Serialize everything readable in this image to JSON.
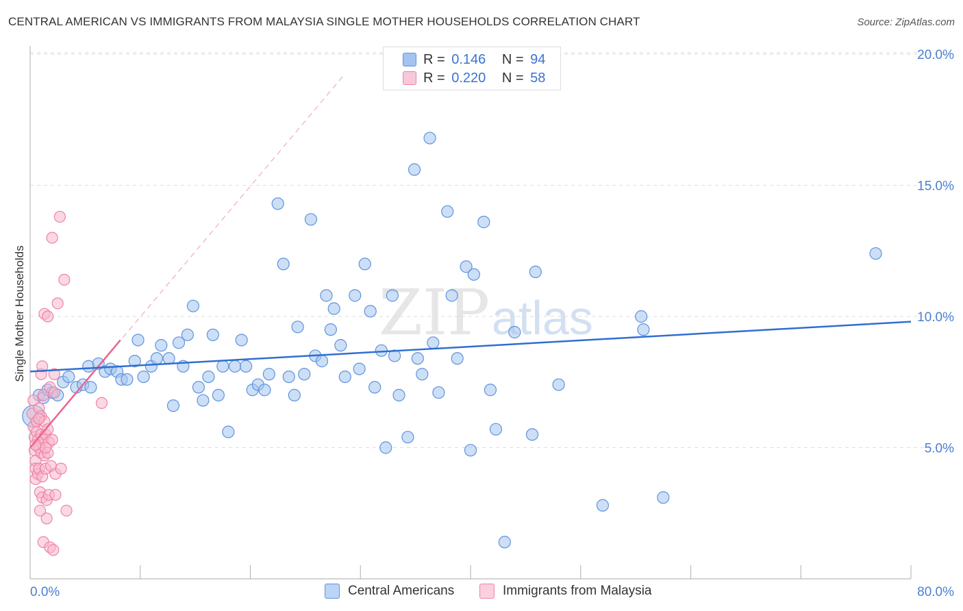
{
  "title": "CENTRAL AMERICAN VS IMMIGRANTS FROM MALAYSIA SINGLE MOTHER HOUSEHOLDS CORRELATION CHART",
  "source": "Source: ZipAtlas.com",
  "watermark": {
    "zip": "ZIP",
    "atlas": "atlas"
  },
  "colors": {
    "blue": "#5e93db",
    "blue_fill": "#a3c4f0",
    "pink": "#ee82a6",
    "pink_fill": "#f8b8cc",
    "blue_line": "#2f6fcf",
    "pink_line": "#e8648f",
    "axis_text": "#4a7fd0"
  },
  "legend": {
    "r_label": "R =",
    "n_label": "N =",
    "items": [
      {
        "r": "0.146",
        "n": "94"
      },
      {
        "r": "0.220",
        "n": "58"
      }
    ]
  },
  "bottom_legend": [
    "Central Americans",
    "Immigrants from Malaysia"
  ],
  "chart_data": {
    "type": "scatter",
    "title": "CENTRAL AMERICAN VS IMMIGRANTS FROM MALAYSIA SINGLE MOTHER HOUSEHOLDS CORRELATION CHART",
    "xlabel": "",
    "ylabel": "Single Mother Households",
    "xlim": [
      0,
      80
    ],
    "ylim": [
      0,
      20.5
    ],
    "x_tick_labels": [
      "0.0%",
      "80.0%"
    ],
    "y_ticks": [
      5,
      10,
      15,
      20
    ],
    "y_tick_labels": [
      "5.0%",
      "10.0%",
      "15.0%",
      "20.0%"
    ],
    "series": [
      {
        "name": "Central Americans",
        "r": 0.146,
        "n": 94,
        "trend": {
          "x": [
            0,
            80
          ],
          "y": [
            7.9,
            9.8
          ]
        },
        "points": [
          [
            0.3,
            6.2
          ],
          [
            0.8,
            7.0
          ],
          [
            1.2,
            6.9
          ],
          [
            1.6,
            7.2
          ],
          [
            2.0,
            7.1
          ],
          [
            2.5,
            7.0
          ],
          [
            3.0,
            7.5
          ],
          [
            3.5,
            7.7
          ],
          [
            4.2,
            7.3
          ],
          [
            4.8,
            7.4
          ],
          [
            5.5,
            7.3
          ],
          [
            5.3,
            8.1
          ],
          [
            6.2,
            8.2
          ],
          [
            6.8,
            7.9
          ],
          [
            7.3,
            8.0
          ],
          [
            7.9,
            7.9
          ],
          [
            8.3,
            7.6
          ],
          [
            8.8,
            7.6
          ],
          [
            9.5,
            8.3
          ],
          [
            9.8,
            9.1
          ],
          [
            10.3,
            7.7
          ],
          [
            11.0,
            8.1
          ],
          [
            11.5,
            8.4
          ],
          [
            11.9,
            8.9
          ],
          [
            12.6,
            8.4
          ],
          [
            13.0,
            6.6
          ],
          [
            13.5,
            9.0
          ],
          [
            13.9,
            8.1
          ],
          [
            14.3,
            9.3
          ],
          [
            14.8,
            10.4
          ],
          [
            15.3,
            7.3
          ],
          [
            15.7,
            6.8
          ],
          [
            16.2,
            7.7
          ],
          [
            16.6,
            9.3
          ],
          [
            17.1,
            7.0
          ],
          [
            17.5,
            8.1
          ],
          [
            18.0,
            5.6
          ],
          [
            18.6,
            8.1
          ],
          [
            19.2,
            9.1
          ],
          [
            19.6,
            8.1
          ],
          [
            20.2,
            7.2
          ],
          [
            20.7,
            7.4
          ],
          [
            21.3,
            7.2
          ],
          [
            21.7,
            7.8
          ],
          [
            22.5,
            14.3
          ],
          [
            23.0,
            12.0
          ],
          [
            23.5,
            7.7
          ],
          [
            24.0,
            7.0
          ],
          [
            24.3,
            9.6
          ],
          [
            24.9,
            7.8
          ],
          [
            25.5,
            13.7
          ],
          [
            25.9,
            8.5
          ],
          [
            26.5,
            8.3
          ],
          [
            26.9,
            10.8
          ],
          [
            27.3,
            9.5
          ],
          [
            27.6,
            10.3
          ],
          [
            28.2,
            8.9
          ],
          [
            28.6,
            7.7
          ],
          [
            29.5,
            10.8
          ],
          [
            29.9,
            8.0
          ],
          [
            30.4,
            12.0
          ],
          [
            30.9,
            10.2
          ],
          [
            31.3,
            7.3
          ],
          [
            31.9,
            8.7
          ],
          [
            32.3,
            5.0
          ],
          [
            32.9,
            10.8
          ],
          [
            33.1,
            8.5
          ],
          [
            33.5,
            7.0
          ],
          [
            34.3,
            5.4
          ],
          [
            34.9,
            15.6
          ],
          [
            35.2,
            8.4
          ],
          [
            35.6,
            7.8
          ],
          [
            36.3,
            16.8
          ],
          [
            36.6,
            9.0
          ],
          [
            37.1,
            7.1
          ],
          [
            37.9,
            14.0
          ],
          [
            38.3,
            10.8
          ],
          [
            38.8,
            8.4
          ],
          [
            39.6,
            11.9
          ],
          [
            40.0,
            4.9
          ],
          [
            40.3,
            11.6
          ],
          [
            41.2,
            13.6
          ],
          [
            41.8,
            7.2
          ],
          [
            42.3,
            5.7
          ],
          [
            43.1,
            1.4
          ],
          [
            44.0,
            9.4
          ],
          [
            45.6,
            5.5
          ],
          [
            45.9,
            11.7
          ],
          [
            48.0,
            7.4
          ],
          [
            52.0,
            2.8
          ],
          [
            55.5,
            10.0
          ],
          [
            55.7,
            9.5
          ],
          [
            57.5,
            3.1
          ],
          [
            76.8,
            12.4
          ]
        ]
      },
      {
        "name": "Immigrants from Malaysia",
        "r": 0.22,
        "n": 58,
        "trend": {
          "x": [
            0,
            8.2
          ],
          "y": [
            5.0,
            9.1
          ]
        },
        "trend_extended": {
          "x": [
            0,
            28.5
          ],
          "y": [
            5.0,
            19.2
          ]
        },
        "points": [
          [
            0.2,
            6.3
          ],
          [
            0.3,
            6.8
          ],
          [
            0.3,
            5.8
          ],
          [
            0.4,
            5.4
          ],
          [
            0.4,
            4.9
          ],
          [
            0.5,
            4.5
          ],
          [
            0.5,
            4.2
          ],
          [
            0.5,
            3.8
          ],
          [
            0.6,
            5.6
          ],
          [
            0.6,
            6.0
          ],
          [
            0.7,
            5.3
          ],
          [
            0.7,
            4.0
          ],
          [
            0.8,
            6.5
          ],
          [
            0.8,
            5.0
          ],
          [
            0.8,
            4.2
          ],
          [
            0.9,
            3.3
          ],
          [
            0.9,
            2.6
          ],
          [
            1.0,
            7.8
          ],
          [
            1.0,
            6.2
          ],
          [
            1.0,
            5.5
          ],
          [
            1.0,
            4.8
          ],
          [
            1.1,
            8.1
          ],
          [
            1.1,
            3.9
          ],
          [
            1.1,
            3.1
          ],
          [
            1.2,
            7.0
          ],
          [
            1.2,
            5.3
          ],
          [
            1.2,
            1.4
          ],
          [
            1.3,
            10.1
          ],
          [
            1.3,
            6.0
          ],
          [
            1.3,
            4.7
          ],
          [
            1.4,
            5.5
          ],
          [
            1.4,
            4.2
          ],
          [
            1.5,
            3.0
          ],
          [
            1.5,
            2.3
          ],
          [
            1.6,
            10.0
          ],
          [
            1.6,
            5.7
          ],
          [
            1.6,
            4.8
          ],
          [
            1.7,
            5.2
          ],
          [
            1.7,
            3.2
          ],
          [
            1.8,
            1.2
          ],
          [
            1.8,
            7.3
          ],
          [
            1.9,
            4.3
          ],
          [
            2.0,
            13.0
          ],
          [
            2.0,
            5.3
          ],
          [
            2.1,
            1.1
          ],
          [
            2.2,
            7.8
          ],
          [
            2.3,
            4.0
          ],
          [
            2.3,
            3.2
          ],
          [
            2.5,
            10.5
          ],
          [
            2.7,
            13.8
          ],
          [
            2.8,
            4.2
          ],
          [
            3.1,
            11.4
          ],
          [
            3.3,
            2.6
          ],
          [
            6.5,
            6.7
          ],
          [
            0.8,
            6.1
          ],
          [
            1.4,
            5.0
          ],
          [
            0.5,
            5.1
          ],
          [
            2.2,
            7.1
          ]
        ]
      }
    ]
  }
}
